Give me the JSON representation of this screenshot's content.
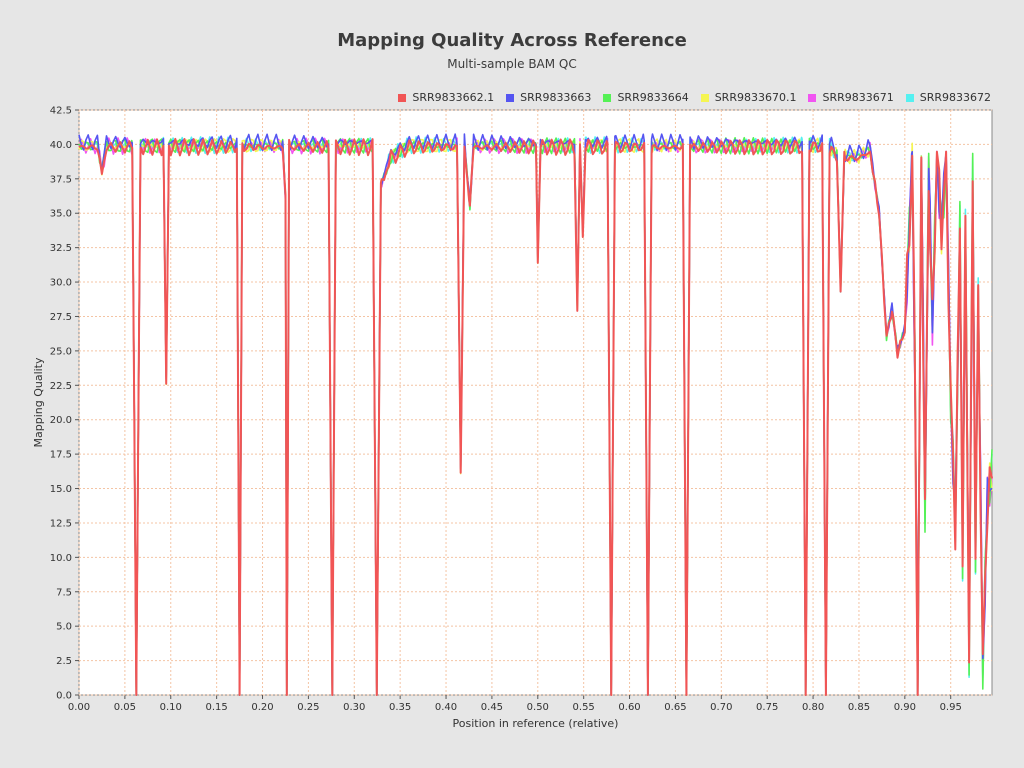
{
  "chart_data": {
    "type": "line",
    "title": "Mapping Quality Across Reference",
    "subtitle": "Multi-sample BAM QC",
    "xlabel": "Position in reference (relative)",
    "ylabel": "Mapping Quality",
    "xlim": [
      0,
      0.995
    ],
    "ylim": [
      0,
      42.5
    ],
    "grid": true,
    "legend_position": "top-right",
    "x_ticks": [
      "0.00",
      "0.05",
      "0.10",
      "0.15",
      "0.20",
      "0.25",
      "0.30",
      "0.35",
      "0.40",
      "0.45",
      "0.50",
      "0.55",
      "0.60",
      "0.65",
      "0.70",
      "0.75",
      "0.80",
      "0.85",
      "0.90",
      "0.95"
    ],
    "y_ticks": [
      "0.0",
      "2.5",
      "5.0",
      "7.5",
      "10.0",
      "12.5",
      "15.0",
      "17.5",
      "20.0",
      "22.5",
      "25.0",
      "27.5",
      "30.0",
      "32.5",
      "35.0",
      "37.5",
      "40.0",
      "42.5"
    ],
    "series": [
      {
        "name": "SRR9833662.1",
        "color": "#f15555"
      },
      {
        "name": "SRR9833663",
        "color": "#5555f1"
      },
      {
        "name": "SRR9833664",
        "color": "#55f155"
      },
      {
        "name": "SRR9833670.1",
        "color": "#f5f552"
      },
      {
        "name": "SRR9833671",
        "color": "#f155f1"
      },
      {
        "name": "SRR9833672",
        "color": "#55f1f1"
      }
    ],
    "shared_profile": {
      "x": [
        0.0,
        0.02,
        0.025,
        0.03,
        0.058,
        0.0625,
        0.067,
        0.092,
        0.095,
        0.098,
        0.172,
        0.175,
        0.178,
        0.222,
        0.225,
        0.2265,
        0.229,
        0.272,
        0.276,
        0.28,
        0.32,
        0.3245,
        0.329,
        0.34,
        0.36,
        0.412,
        0.416,
        0.42,
        0.426,
        0.43,
        0.498,
        0.5,
        0.503,
        0.54,
        0.543,
        0.546,
        0.549,
        0.552,
        0.576,
        0.58,
        0.584,
        0.616,
        0.62,
        0.624,
        0.658,
        0.662,
        0.666,
        0.788,
        0.792,
        0.796,
        0.81,
        0.814,
        0.818,
        0.826,
        0.83,
        0.834,
        0.85,
        0.862,
        0.872,
        0.88,
        0.886,
        0.892,
        0.9,
        0.908,
        0.911,
        0.914,
        0.918,
        0.922,
        0.926,
        0.93,
        0.935,
        0.94,
        0.945,
        0.95,
        0.955,
        0.96,
        0.963,
        0.966,
        0.97,
        0.974,
        0.977,
        0.98,
        0.985,
        0.99,
        0.995
      ],
      "y": [
        39.8,
        39.8,
        38.0,
        39.8,
        39.8,
        0.0,
        39.8,
        39.8,
        22.8,
        39.8,
        39.8,
        0.0,
        39.8,
        39.8,
        36.0,
        0.0,
        39.8,
        39.8,
        0.0,
        39.8,
        39.8,
        0.0,
        37.0,
        39.0,
        39.8,
        39.8,
        16.3,
        39.8,
        35.5,
        39.8,
        39.8,
        31.6,
        39.8,
        39.8,
        28.2,
        39.8,
        33.5,
        39.8,
        39.8,
        0.0,
        39.8,
        39.8,
        0.0,
        39.8,
        39.8,
        0.0,
        39.8,
        39.8,
        0.0,
        39.8,
        39.8,
        0.0,
        39.8,
        39.0,
        29.5,
        39.0,
        39.0,
        39.5,
        35.0,
        26.0,
        28.0,
        24.8,
        26.5,
        38.5,
        24.0,
        0.0,
        39.0,
        13.5,
        38.0,
        27.0,
        39.0,
        33.8,
        39.0,
        21.5,
        12.3,
        34.0,
        10.0,
        33.5,
        3.0,
        37.5,
        10.5,
        28.5,
        2.0,
        14.0,
        16.0
      ],
      "offsets": [
        0,
        0.35,
        0.1,
        0.12,
        0.08,
        0.15
      ]
    }
  }
}
